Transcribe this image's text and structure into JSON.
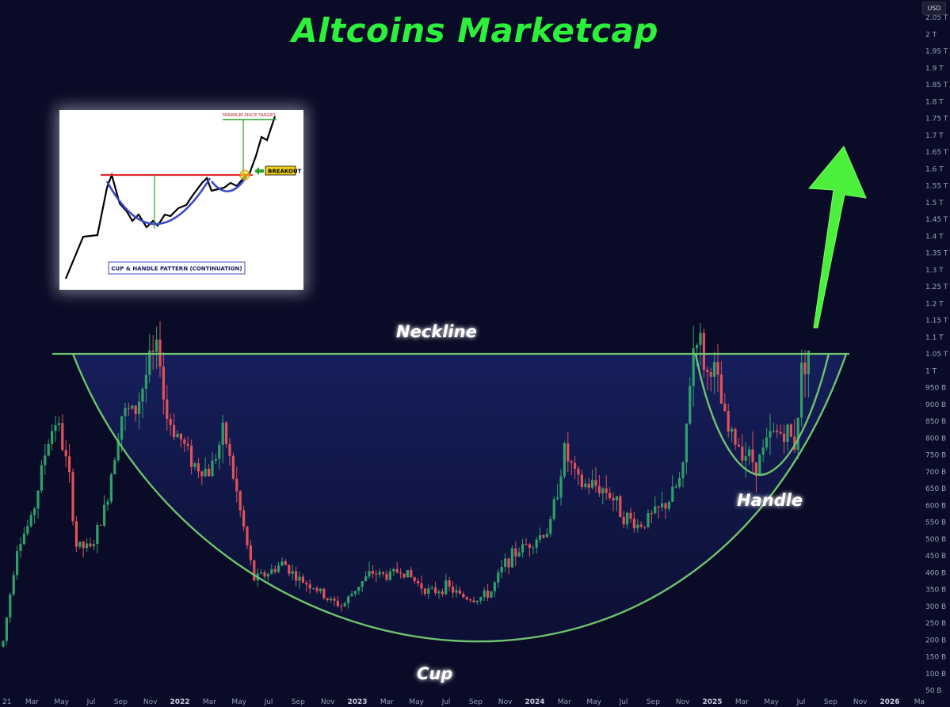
{
  "title": "Altcoins Marketcap",
  "currency_badge": "USD",
  "annotations": {
    "neckline": "Neckline",
    "cup": "Cup",
    "handle": "Handle"
  },
  "inset": {
    "caption": "CUP & HANDLE PATTERN (CONTINUATION)",
    "breakout_label": "BREAKOUT",
    "target_label": "MINIMUM PRICE TARGET"
  },
  "colors": {
    "title": "#2cf03c",
    "pattern_line": "#6fc36f",
    "arrow": "#4cf03c",
    "up_candle": "#2fa06a",
    "down_candle": "#e0525a",
    "background": "#0a0b26"
  },
  "chart_data": {
    "type": "candlestick",
    "title": "Altcoins Marketcap",
    "yaxis_ticks": [
      "2.05 T",
      "2 T",
      "1.95 T",
      "1.9 T",
      "1.85 T",
      "1.8 T",
      "1.75 T",
      "1.7 T",
      "1.65 T",
      "1.6 T",
      "1.55 T",
      "1.5 T",
      "1.45 T",
      "1.4 T",
      "1.35 T",
      "1.3 T",
      "1.25 T",
      "1.2 T",
      "1.15 T",
      "1.1 T",
      "1.05 T",
      "1 T",
      "950 B",
      "900 B",
      "850 B",
      "800 B",
      "750 B",
      "700 B",
      "650 B",
      "600 B",
      "550 B",
      "500 B",
      "450 B",
      "400 B",
      "350 B",
      "300 B",
      "250 B",
      "200 B",
      "150 B",
      "100 B",
      "50 B"
    ],
    "xaxis_ticks": [
      {
        "label": "21",
        "bold": false
      },
      {
        "label": "Mar",
        "bold": false
      },
      {
        "label": "May",
        "bold": false
      },
      {
        "label": "Jul",
        "bold": false
      },
      {
        "label": "Sep",
        "bold": false
      },
      {
        "label": "Nov",
        "bold": false
      },
      {
        "label": "2022",
        "bold": true
      },
      {
        "label": "Mar",
        "bold": false
      },
      {
        "label": "May",
        "bold": false
      },
      {
        "label": "Jul",
        "bold": false
      },
      {
        "label": "Sep",
        "bold": false
      },
      {
        "label": "Nov",
        "bold": false
      },
      {
        "label": "2023",
        "bold": true
      },
      {
        "label": "Mar",
        "bold": false
      },
      {
        "label": "May",
        "bold": false
      },
      {
        "label": "Jul",
        "bold": false
      },
      {
        "label": "Sep",
        "bold": false
      },
      {
        "label": "Nov",
        "bold": false
      },
      {
        "label": "2024",
        "bold": true
      },
      {
        "label": "Mar",
        "bold": false
      },
      {
        "label": "May",
        "bold": false
      },
      {
        "label": "Jul",
        "bold": false
      },
      {
        "label": "Sep",
        "bold": false
      },
      {
        "label": "Nov",
        "bold": false
      },
      {
        "label": "2025",
        "bold": true
      },
      {
        "label": "Mar",
        "bold": false
      },
      {
        "label": "May",
        "bold": false
      },
      {
        "label": "Jul",
        "bold": false
      },
      {
        "label": "Sep",
        "bold": false
      },
      {
        "label": "Nov",
        "bold": false
      },
      {
        "label": "2026",
        "bold": true
      },
      {
        "label": "Ma",
        "bold": false
      }
    ],
    "neckline_value": "1.05 T",
    "price_path": [
      [
        "2021-01",
        180
      ],
      [
        "2021-02",
        480
      ],
      [
        "2021-03",
        560
      ],
      [
        "2021-04",
        780
      ],
      [
        "2021-04-20",
        860
      ],
      [
        "2021-05-15",
        700
      ],
      [
        "2021-06",
        480
      ],
      [
        "2021-07",
        470
      ],
      [
        "2021-08",
        600
      ],
      [
        "2021-09",
        870
      ],
      [
        "2021-10",
        880
      ],
      [
        "2021-11",
        1030
      ],
      [
        "2021-11-20",
        1060
      ],
      [
        "2021-12",
        870
      ],
      [
        "2022-01",
        800
      ],
      [
        "2022-02",
        720
      ],
      [
        "2022-03",
        700
      ],
      [
        "2022-04",
        820
      ],
      [
        "2022-05",
        600
      ],
      [
        "2022-06",
        380
      ],
      [
        "2022-07",
        400
      ],
      [
        "2022-08",
        430
      ],
      [
        "2022-09",
        380
      ],
      [
        "2022-10",
        360
      ],
      [
        "2022-11",
        320
      ],
      [
        "2022-12",
        300
      ],
      [
        "2023-01",
        360
      ],
      [
        "2023-02",
        400
      ],
      [
        "2023-03",
        390
      ],
      [
        "2023-04",
        410
      ],
      [
        "2023-05",
        370
      ],
      [
        "2023-06",
        340
      ],
      [
        "2023-07",
        360
      ],
      [
        "2023-08",
        330
      ],
      [
        "2023-09",
        320
      ],
      [
        "2023-10",
        340
      ],
      [
        "2023-11",
        430
      ],
      [
        "2023-12",
        470
      ],
      [
        "2024-01",
        500
      ],
      [
        "2024-02",
        530
      ],
      [
        "2024-03",
        760
      ],
      [
        "2024-04",
        660
      ],
      [
        "2024-05",
        660
      ],
      [
        "2024-06",
        640
      ],
      [
        "2024-07",
        570
      ],
      [
        "2024-08",
        540
      ],
      [
        "2024-09",
        570
      ],
      [
        "2024-10",
        610
      ],
      [
        "2024-11",
        690
      ],
      [
        "2024-11-20",
        1050
      ],
      [
        "2024-12",
        1120
      ],
      [
        "2024-12-20",
        980
      ],
      [
        "2025-01",
        1030
      ],
      [
        "2025-02",
        820
      ],
      [
        "2025-03",
        770
      ],
      [
        "2025-04",
        720
      ],
      [
        "2025-05",
        810
      ],
      [
        "2025-06",
        820
      ],
      [
        "2025-06-20",
        780
      ],
      [
        "2025-07",
        1000
      ],
      [
        "2025-07-20",
        1080
      ]
    ],
    "ylim": [
      50,
      2050
    ]
  }
}
